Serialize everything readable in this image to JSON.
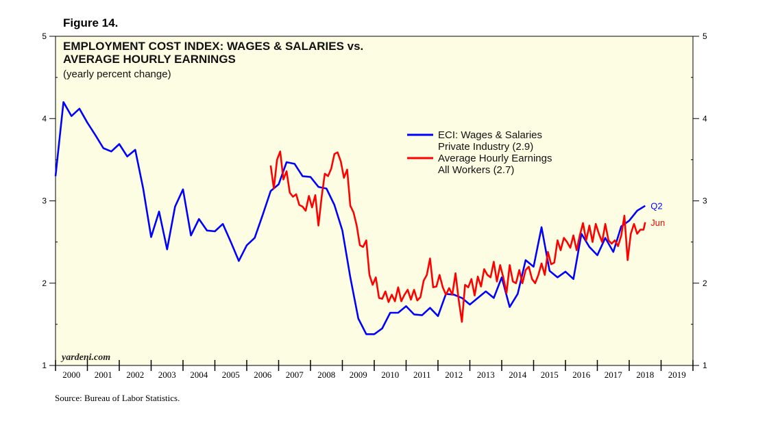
{
  "figure_label": "Figure 14.",
  "source": "Source: Bureau of Labor Statistics.",
  "watermark": "yardeni.com",
  "colors": {
    "background": "#fdfde3",
    "eci": "#0000ff",
    "ahe": "#ff0000",
    "axis": "#000000"
  },
  "chart_data": {
    "type": "line",
    "title_line1": "EMPLOYMENT COST INDEX: WAGES & SALARIES vs.",
    "title_line2": "AVERAGE HOURLY EARNINGS",
    "subtitle": "(yearly percent change)",
    "ylim": [
      1,
      5
    ],
    "yticks": [
      "1",
      "2",
      "3",
      "4",
      "5"
    ],
    "xlim": [
      2000,
      2020
    ],
    "year_labels": [
      "2000",
      "2001",
      "2002",
      "2003",
      "2004",
      "2005",
      "2006",
      "2007",
      "2008",
      "2009",
      "2010",
      "2011",
      "2012",
      "2013",
      "2014",
      "2015",
      "2016",
      "2017",
      "2018",
      "2019"
    ],
    "legend": [
      {
        "line1": "ECI: Wages & Salaries",
        "line2": "Private Industry (2.9)"
      },
      {
        "line1": "Average Hourly Earnings",
        "line2": "All Workers (2.7)"
      }
    ],
    "series": [
      {
        "name": "ECI: Wages & Salaries Private Industry",
        "end_label": "Q2",
        "points": [
          [
            2000.0,
            3.3
          ],
          [
            2000.25,
            4.2
          ],
          [
            2000.5,
            4.03
          ],
          [
            2000.75,
            4.12
          ],
          [
            2001.0,
            3.95
          ],
          [
            2001.25,
            3.8
          ],
          [
            2001.5,
            3.64
          ],
          [
            2001.75,
            3.6
          ],
          [
            2002.0,
            3.69
          ],
          [
            2002.25,
            3.54
          ],
          [
            2002.5,
            3.62
          ],
          [
            2002.75,
            3.15
          ],
          [
            2003.0,
            2.56
          ],
          [
            2003.25,
            2.87
          ],
          [
            2003.5,
            2.41
          ],
          [
            2003.75,
            2.93
          ],
          [
            2004.0,
            3.14
          ],
          [
            2004.25,
            2.58
          ],
          [
            2004.5,
            2.78
          ],
          [
            2004.75,
            2.64
          ],
          [
            2005.0,
            2.63
          ],
          [
            2005.25,
            2.72
          ],
          [
            2005.5,
            2.5
          ],
          [
            2005.75,
            2.27
          ],
          [
            2006.0,
            2.46
          ],
          [
            2006.25,
            2.55
          ],
          [
            2006.5,
            2.83
          ],
          [
            2006.75,
            3.12
          ],
          [
            2007.0,
            3.2
          ],
          [
            2007.25,
            3.47
          ],
          [
            2007.5,
            3.45
          ],
          [
            2007.75,
            3.3
          ],
          [
            2008.0,
            3.29
          ],
          [
            2008.25,
            3.17
          ],
          [
            2008.5,
            3.15
          ],
          [
            2008.75,
            2.95
          ],
          [
            2009.0,
            2.64
          ],
          [
            2009.25,
            2.07
          ],
          [
            2009.5,
            1.57
          ],
          [
            2009.75,
            1.38
          ],
          [
            2010.0,
            1.38
          ],
          [
            2010.25,
            1.45
          ],
          [
            2010.5,
            1.64
          ],
          [
            2010.75,
            1.64
          ],
          [
            2011.0,
            1.72
          ],
          [
            2011.25,
            1.62
          ],
          [
            2011.5,
            1.61
          ],
          [
            2011.75,
            1.7
          ],
          [
            2012.0,
            1.6
          ],
          [
            2012.25,
            1.87
          ],
          [
            2012.5,
            1.86
          ],
          [
            2012.75,
            1.82
          ],
          [
            2013.0,
            1.74
          ],
          [
            2013.25,
            1.82
          ],
          [
            2013.5,
            1.9
          ],
          [
            2013.75,
            1.82
          ],
          [
            2014.0,
            2.07
          ],
          [
            2014.25,
            1.71
          ],
          [
            2014.5,
            1.87
          ],
          [
            2014.75,
            2.28
          ],
          [
            2015.0,
            2.2
          ],
          [
            2015.25,
            2.68
          ],
          [
            2015.5,
            2.15
          ],
          [
            2015.75,
            2.07
          ],
          [
            2016.0,
            2.14
          ],
          [
            2016.25,
            2.05
          ],
          [
            2016.5,
            2.6
          ],
          [
            2016.75,
            2.44
          ],
          [
            2017.0,
            2.34
          ],
          [
            2017.25,
            2.55
          ],
          [
            2017.5,
            2.38
          ],
          [
            2017.75,
            2.69
          ],
          [
            2018.0,
            2.76
          ],
          [
            2018.25,
            2.88
          ],
          [
            2018.5,
            2.94
          ]
        ]
      },
      {
        "name": "Average Hourly Earnings All Workers",
        "end_label": "Jun",
        "points": [
          [
            2006.75,
            3.43
          ],
          [
            2006.85,
            3.15
          ],
          [
            2006.95,
            3.5
          ],
          [
            2007.05,
            3.6
          ],
          [
            2007.15,
            3.26
          ],
          [
            2007.25,
            3.36
          ],
          [
            2007.35,
            3.1
          ],
          [
            2007.45,
            3.05
          ],
          [
            2007.55,
            3.08
          ],
          [
            2007.65,
            2.95
          ],
          [
            2007.75,
            2.93
          ],
          [
            2007.85,
            2.88
          ],
          [
            2007.95,
            3.06
          ],
          [
            2008.05,
            2.92
          ],
          [
            2008.15,
            3.07
          ],
          [
            2008.25,
            2.7
          ],
          [
            2008.35,
            3.05
          ],
          [
            2008.45,
            3.33
          ],
          [
            2008.55,
            3.3
          ],
          [
            2008.65,
            3.39
          ],
          [
            2008.75,
            3.57
          ],
          [
            2008.85,
            3.59
          ],
          [
            2008.95,
            3.48
          ],
          [
            2009.05,
            3.28
          ],
          [
            2009.15,
            3.38
          ],
          [
            2009.25,
            2.94
          ],
          [
            2009.35,
            2.86
          ],
          [
            2009.45,
            2.7
          ],
          [
            2009.55,
            2.46
          ],
          [
            2009.65,
            2.44
          ],
          [
            2009.75,
            2.52
          ],
          [
            2009.85,
            2.1
          ],
          [
            2009.95,
            1.98
          ],
          [
            2010.05,
            2.07
          ],
          [
            2010.15,
            1.82
          ],
          [
            2010.25,
            1.81
          ],
          [
            2010.35,
            1.9
          ],
          [
            2010.45,
            1.77
          ],
          [
            2010.55,
            1.86
          ],
          [
            2010.65,
            1.78
          ],
          [
            2010.75,
            1.95
          ],
          [
            2010.85,
            1.78
          ],
          [
            2010.95,
            1.86
          ],
          [
            2011.05,
            1.92
          ],
          [
            2011.15,
            1.8
          ],
          [
            2011.25,
            1.92
          ],
          [
            2011.35,
            1.79
          ],
          [
            2011.45,
            1.83
          ],
          [
            2011.55,
            2.03
          ],
          [
            2011.65,
            2.1
          ],
          [
            2011.75,
            2.3
          ],
          [
            2011.85,
            1.95
          ],
          [
            2011.95,
            1.96
          ],
          [
            2012.05,
            2.1
          ],
          [
            2012.15,
            1.95
          ],
          [
            2012.25,
            1.86
          ],
          [
            2012.35,
            1.94
          ],
          [
            2012.45,
            1.86
          ],
          [
            2012.55,
            2.12
          ],
          [
            2012.65,
            1.8
          ],
          [
            2012.75,
            1.53
          ],
          [
            2012.85,
            1.98
          ],
          [
            2012.95,
            1.95
          ],
          [
            2013.05,
            2.05
          ],
          [
            2013.15,
            1.85
          ],
          [
            2013.25,
            2.08
          ],
          [
            2013.35,
            1.96
          ],
          [
            2013.45,
            2.17
          ],
          [
            2013.55,
            2.1
          ],
          [
            2013.65,
            2.07
          ],
          [
            2013.75,
            2.26
          ],
          [
            2013.85,
            2.02
          ],
          [
            2013.95,
            2.22
          ],
          [
            2014.05,
            2.07
          ],
          [
            2014.15,
            1.88
          ],
          [
            2014.25,
            2.22
          ],
          [
            2014.35,
            2.02
          ],
          [
            2014.45,
            2.0
          ],
          [
            2014.55,
            2.16
          ],
          [
            2014.65,
            2.0
          ],
          [
            2014.75,
            2.16
          ],
          [
            2014.85,
            2.2
          ],
          [
            2014.95,
            2.05
          ],
          [
            2015.05,
            2.0
          ],
          [
            2015.15,
            2.1
          ],
          [
            2015.25,
            2.24
          ],
          [
            2015.35,
            2.1
          ],
          [
            2015.45,
            2.38
          ],
          [
            2015.55,
            2.23
          ],
          [
            2015.65,
            2.25
          ],
          [
            2015.75,
            2.52
          ],
          [
            2015.85,
            2.4
          ],
          [
            2015.95,
            2.55
          ],
          [
            2016.05,
            2.5
          ],
          [
            2016.15,
            2.43
          ],
          [
            2016.25,
            2.58
          ],
          [
            2016.35,
            2.4
          ],
          [
            2016.45,
            2.58
          ],
          [
            2016.55,
            2.73
          ],
          [
            2016.65,
            2.52
          ],
          [
            2016.75,
            2.7
          ],
          [
            2016.85,
            2.5
          ],
          [
            2016.95,
            2.72
          ],
          [
            2017.05,
            2.6
          ],
          [
            2017.15,
            2.5
          ],
          [
            2017.25,
            2.72
          ],
          [
            2017.35,
            2.52
          ],
          [
            2017.45,
            2.48
          ],
          [
            2017.55,
            2.52
          ],
          [
            2017.65,
            2.45
          ],
          [
            2017.75,
            2.58
          ],
          [
            2017.85,
            2.82
          ],
          [
            2017.95,
            2.28
          ],
          [
            2018.05,
            2.6
          ],
          [
            2018.15,
            2.72
          ],
          [
            2018.25,
            2.6
          ],
          [
            2018.35,
            2.65
          ],
          [
            2018.45,
            2.65
          ],
          [
            2018.5,
            2.74
          ]
        ]
      }
    ]
  }
}
